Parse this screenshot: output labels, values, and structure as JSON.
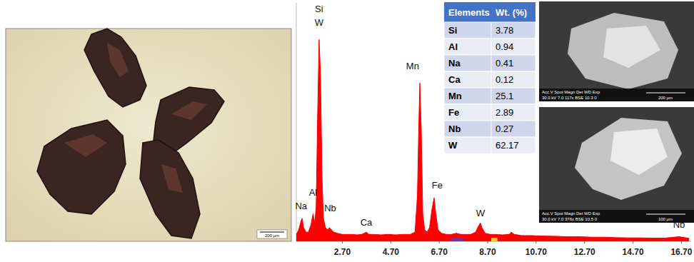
{
  "chart_data": {
    "type": "area",
    "color": "#ff0000",
    "x": [
      0.8,
      0.9,
      1.0,
      1.04,
      1.1,
      1.2,
      1.3,
      1.4,
      1.49,
      1.56,
      1.62,
      1.68,
      1.74,
      1.8,
      1.86,
      1.92,
      2.0,
      2.1,
      2.17,
      2.25,
      2.35,
      2.5,
      2.7,
      2.9,
      3.1,
      3.3,
      3.5,
      3.69,
      3.8,
      4.0,
      4.3,
      4.6,
      4.9,
      5.2,
      5.5,
      5.7,
      5.8,
      5.86,
      5.9,
      5.96,
      6.02,
      6.1,
      6.2,
      6.3,
      6.4,
      6.49,
      6.56,
      6.65,
      6.8,
      7.0,
      7.2,
      7.4,
      7.6,
      7.8,
      8.0,
      8.2,
      8.34,
      8.4,
      8.46,
      8.6,
      8.8,
      9.0,
      9.3,
      9.6,
      9.67,
      9.8,
      10.1,
      10.5,
      11.0,
      11.5,
      12.0,
      12.5,
      13.0,
      13.5,
      14.0,
      14.5,
      15.0,
      15.5,
      16.0,
      16.6,
      17.0
    ],
    "series": [
      {
        "values": [
          3,
          5,
          9,
          10,
          6,
          4,
          4,
          7,
          12,
          8,
          15,
          55,
          88,
          72,
          28,
          10,
          6,
          5,
          6,
          5,
          4,
          3.5,
          3,
          3,
          3,
          2.8,
          3,
          4,
          3,
          3,
          2.8,
          3,
          2.8,
          3,
          3,
          4,
          20,
          52,
          69,
          48,
          12,
          5,
          4,
          6,
          14,
          19,
          12,
          5,
          3.5,
          3,
          3,
          3.5,
          3,
          3,
          3,
          4,
          7,
          8,
          6,
          3.5,
          3,
          3,
          2.8,
          3,
          4,
          3,
          2.5,
          2.5,
          2.3,
          2.2,
          2,
          2,
          1.8,
          1.8,
          1.6,
          1.5,
          1.5,
          1.4,
          1.4,
          2,
          1.3
        ]
      }
    ],
    "xlim": [
      0.8,
      17.1
    ],
    "ylim": [
      0,
      104
    ],
    "xticks": [
      {
        "value": 2.7,
        "label": "2.70"
      },
      {
        "value": 4.7,
        "label": "4.70"
      },
      {
        "value": 6.7,
        "label": "6.70"
      },
      {
        "value": 8.7,
        "label": "8.70"
      },
      {
        "value": 10.7,
        "label": "10.70"
      },
      {
        "value": 12.7,
        "label": "12.70"
      },
      {
        "value": 14.7,
        "label": "14.70"
      },
      {
        "value": 16.7,
        "label": "16.70"
      }
    ],
    "tick_labels": "x",
    "annotations": [
      {
        "text": "Si",
        "x": 1.74,
        "y": 100
      },
      {
        "text": "W",
        "x": 1.74,
        "y": 94
      },
      {
        "text": "Na",
        "x": 1.0,
        "y": 14
      },
      {
        "text": "Al",
        "x": 1.49,
        "y": 20
      },
      {
        "text": "Nb",
        "x": 2.2,
        "y": 13
      },
      {
        "text": "Ca",
        "x": 3.69,
        "y": 7
      },
      {
        "text": "Mn",
        "x": 5.6,
        "y": 75
      },
      {
        "text": "Fe",
        "x": 6.62,
        "y": 23
      },
      {
        "text": "W",
        "x": 8.4,
        "y": 11
      },
      {
        "text": "Nb",
        "x": 16.6,
        "y": 6
      }
    ],
    "regions": [
      {
        "x0": 7.2,
        "x1": 7.7,
        "color": "#7030a0"
      },
      {
        "x0": 8.85,
        "x1": 9.1,
        "color": "#ffd700"
      }
    ]
  },
  "table": {
    "header": [
      "Elements",
      "Wt. (%)"
    ],
    "rows": [
      [
        "Si",
        "3.78"
      ],
      [
        "Al",
        "0.94"
      ],
      [
        "Na",
        "0.41"
      ],
      [
        "Ca",
        "0.12"
      ],
      [
        "Mn",
        "25.1"
      ],
      [
        "Fe",
        "2.89"
      ],
      [
        "Nb",
        "0.27"
      ],
      [
        "W",
        "62.17"
      ]
    ]
  },
  "photo": {
    "scale_bar": "200 µm"
  },
  "sem_images": [
    {
      "info": "Acc.V  Spot Magn   Det  WD  Exp",
      "settings": "30.0 kV 7.0  117x   BSE 10.3 0",
      "scale": "200 µm"
    },
    {
      "info": "Acc.V  Spot Magn   Det  WD  Exp",
      "settings": "30.0 kV 7.0  376x   BSE 10.5 0",
      "scale": "100 µm"
    }
  ]
}
